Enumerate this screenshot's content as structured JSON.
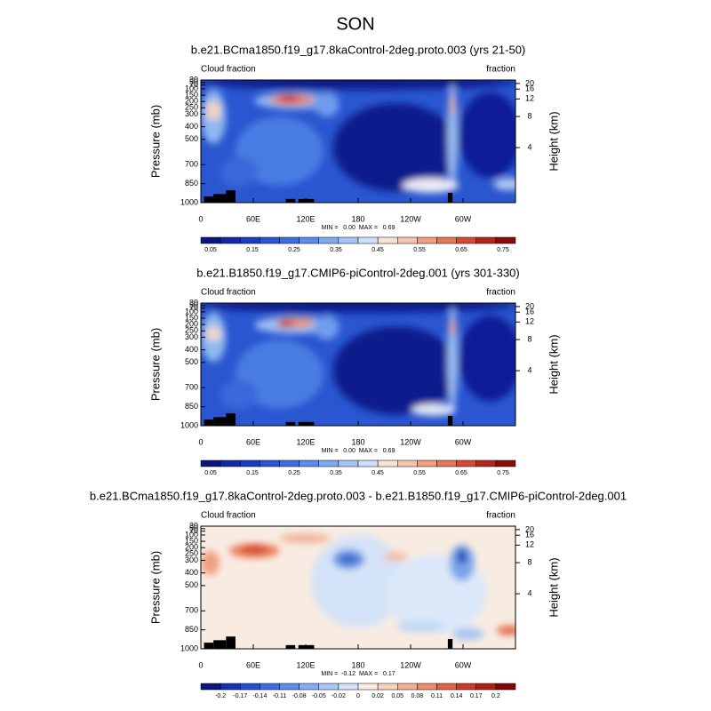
{
  "title": "SON",
  "axes": {
    "y_label": "Pressure (mb)",
    "y2_label": "Height (km)",
    "xlim": [
      0,
      360
    ],
    "xticks": [
      0,
      {
        "value": 60,
        "label": "60E"
      },
      {
        "value": 120,
        "label": "120E"
      },
      180,
      {
        "value": 240,
        "label": "120W"
      },
      {
        "value": 300,
        "label": "60W"
      }
    ],
    "ylim": [
      1000,
      30
    ],
    "yticks": [
      1000,
      850,
      700,
      500,
      400,
      300,
      250,
      200,
      150,
      100,
      70,
      50,
      30
    ],
    "y2ticks": [
      4,
      8,
      12,
      16,
      20
    ]
  },
  "panels": [
    {
      "title": "b.e21.BCma1850.f19_g17.8kaControl-2deg.proto.003 (yrs 21-50)",
      "left_label": "Cloud fraction",
      "right_label": "fraction",
      "stats": "MIN =   0.00  MAX =   0.69",
      "colorbar_labels": [
        0.05,
        0.15,
        0.25,
        0.35,
        0.45,
        0.55,
        0.65,
        0.75
      ]
    },
    {
      "title": "b.e21.B1850.f19_g17.CMIP6-piControl-2deg.001 (yrs 301-330)",
      "left_label": "Cloud fraction",
      "right_label": "fraction",
      "stats": "MIN =   0.00  MAX =   0.69",
      "colorbar_labels": [
        0.05,
        0.15,
        0.25,
        0.35,
        0.45,
        0.55,
        0.65,
        0.75
      ]
    },
    {
      "title": "b.e21.BCma1850.f19_g17.8kaControl-2deg.proto.003 - b.e21.B1850.f19_g17.CMIP6-piControl-2deg.001",
      "left_label": "Cloud fraction",
      "right_label": "fraction",
      "stats": "MIN =  -0.12  MAX =   0.17",
      "colorbar_labels": [
        -0.2,
        -0.17,
        -0.14,
        -0.11,
        -0.08,
        -0.05,
        -0.02,
        0,
        0.02,
        0.05,
        0.08,
        0.11,
        0.14,
        0.17,
        0.2
      ]
    }
  ]
}
